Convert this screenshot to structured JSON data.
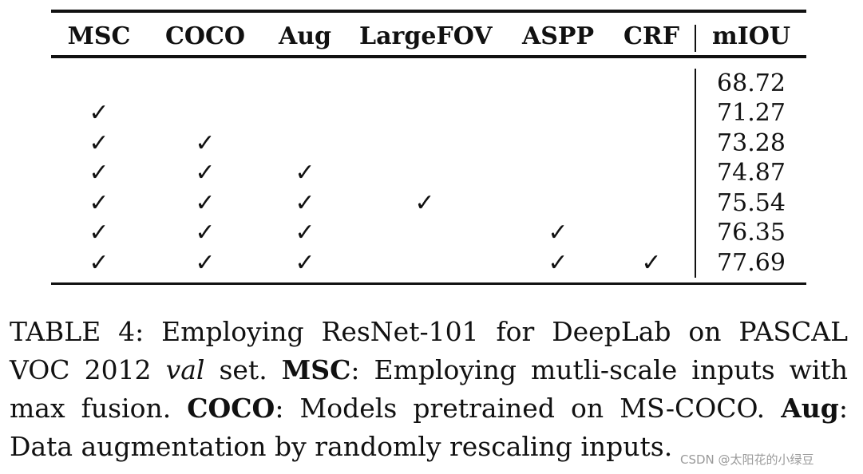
{
  "table": {
    "headers": [
      "MSC",
      "COCO",
      "Aug",
      "LargeFOV",
      "ASPP",
      "CRF",
      "mIOU"
    ],
    "check_symbol": "✓",
    "rows": [
      {
        "checks": [
          false,
          false,
          false,
          false,
          false,
          false
        ],
        "miou": "68.72"
      },
      {
        "checks": [
          true,
          false,
          false,
          false,
          false,
          false
        ],
        "miou": "71.27"
      },
      {
        "checks": [
          true,
          true,
          false,
          false,
          false,
          false
        ],
        "miou": "73.28"
      },
      {
        "checks": [
          true,
          true,
          true,
          false,
          false,
          false
        ],
        "miou": "74.87"
      },
      {
        "checks": [
          true,
          true,
          true,
          true,
          false,
          false
        ],
        "miou": "75.54"
      },
      {
        "checks": [
          true,
          true,
          true,
          false,
          true,
          false
        ],
        "miou": "76.35"
      },
      {
        "checks": [
          true,
          true,
          true,
          false,
          true,
          true
        ],
        "miou": "77.69"
      }
    ]
  },
  "caption": {
    "prefix": "TABLE 4: Employing ResNet-101 for DeepLab on PASCAL VOC 2012 ",
    "val_word": "val",
    "after_val": " set. ",
    "msc_label": "MSC",
    "msc_text": ": Employing mutli-scale inputs with max fusion. ",
    "coco_label": "COCO",
    "coco_text": ": Models pretrained on MS-COCO. ",
    "aug_label": "Aug",
    "aug_text": ": Data augmentation by randomly rescaling inputs."
  },
  "watermark": "CSDN @太阳花的小绿豆"
}
